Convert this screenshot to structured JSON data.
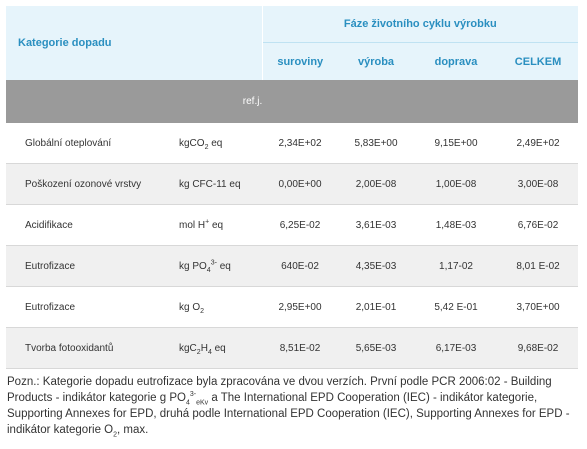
{
  "header": {
    "category_label": "Kategorie dopadu",
    "phase_label": "Fáze životního cyklu výrobku",
    "columns": [
      "suroviny",
      "výroba",
      "doprava",
      "CELKEM"
    ],
    "ref_label": "ref.j."
  },
  "rows": [
    {
      "name": "Globální oteplování",
      "unit_base": "kgCO",
      "unit_sub": "2",
      "unit_sup": "",
      "unit_tail": " eq",
      "values": [
        "2,34E+02",
        "5,83E+00",
        "9,15E+00",
        "2,49E+02"
      ]
    },
    {
      "name": "Poškození ozonové vrstvy",
      "unit_base": "kg CFC-11 eq",
      "unit_sub": "",
      "unit_sup": "",
      "unit_tail": "",
      "values": [
        "0,00E+00",
        "2,00E-08",
        "1,00E-08",
        "3,00E-08"
      ]
    },
    {
      "name": "Acidifikace",
      "unit_base": "mol H",
      "unit_sub": "",
      "unit_sup": "+",
      "unit_tail": " eq",
      "values": [
        "6,25E-02",
        "3,61E-03",
        "1,48E-03",
        "6,76E-02"
      ]
    },
    {
      "name": "Eutrofizace",
      "unit_base": "kg PO",
      "unit_sub": "4",
      "unit_sup": "3-",
      "unit_tail": " eq",
      "values": [
        "640E-02",
        "4,35E-03",
        "1,17-02",
        "8,01 E-02"
      ]
    },
    {
      "name": "Eutrofizace",
      "unit_base": "kg O",
      "unit_sub": "2",
      "unit_sup": "",
      "unit_tail": "",
      "values": [
        "2,95E+00",
        "2,01E-01",
        "5,42 E-01",
        "3,70E+00"
      ]
    },
    {
      "name": "Tvorba fotooxidantů",
      "unit_base": "kgC",
      "unit_sub": "2",
      "unit_mid": "H",
      "unit_sub2": "4",
      "unit_sup": "",
      "unit_tail": " eq",
      "values": [
        "8,51E-02",
        "5,65E-03",
        "6,17E-03",
        "9,68E-02"
      ]
    }
  ],
  "note": {
    "part1": "Pozn.: Kategorie dopadu eutrofizace byla zpracována ve dvou verzích. První podle PCR 2006:02 - Building Products - indikátor kategorie g PO",
    "part1_sub": "4",
    "part1_sup": "3-",
    "part1_sub2": "eKv",
    "part2": " a The International EPD Cooperation (IEC) - indikátor kategorie, Supporting Annexes for EPD, druhá podle International EPD Cooperation (IEC), Supporting Annexes for EPD - indikátor kategorie O",
    "part2_sub": "2",
    "part3": ", max."
  }
}
